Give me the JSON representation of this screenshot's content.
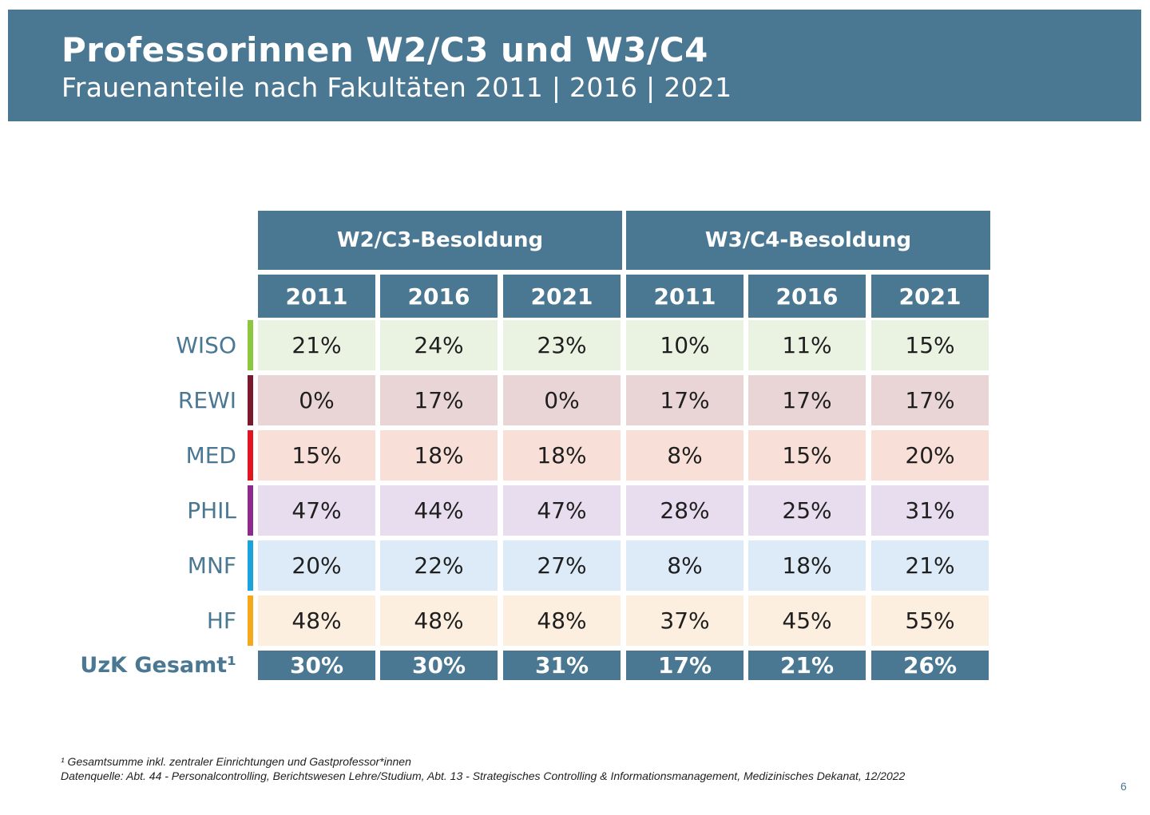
{
  "header": {
    "title": "Professorinnen W2/C3 und W3/C4",
    "subtitle": "Frauenanteile nach Fakultäten 2011 | 2016 | 2021"
  },
  "table": {
    "groups": [
      "W2/C3-Besoldung",
      "W3/C4-Besoldung"
    ],
    "years": [
      "2011",
      "2016",
      "2021",
      "2011",
      "2016",
      "2021"
    ],
    "rows": [
      {
        "label": "WISO",
        "accent": "#8dc63f",
        "bg": "#eaf3e2",
        "values": [
          "21%",
          "24%",
          "23%",
          "10%",
          "11%",
          "15%"
        ]
      },
      {
        "label": "REWI",
        "accent": "#7a1a2e",
        "bg": "#ead5d6",
        "values": [
          "0%",
          "17%",
          "0%",
          "17%",
          "17%",
          "17%"
        ]
      },
      {
        "label": "MED",
        "accent": "#e2141f",
        "bg": "#f8dfd7",
        "values": [
          "15%",
          "18%",
          "18%",
          "8%",
          "15%",
          "20%"
        ]
      },
      {
        "label": "PHIL",
        "accent": "#8e2a8e",
        "bg": "#e7ddee",
        "values": [
          "47%",
          "44%",
          "47%",
          "28%",
          "25%",
          "31%"
        ]
      },
      {
        "label": "MNF",
        "accent": "#1aa3dd",
        "bg": "#dcebf7",
        "values": [
          "20%",
          "22%",
          "27%",
          "8%",
          "18%",
          "21%"
        ]
      },
      {
        "label": "HF",
        "accent": "#f5a81c",
        "bg": "#fdefdf",
        "values": [
          "48%",
          "48%",
          "48%",
          "37%",
          "45%",
          "55%"
        ]
      }
    ],
    "total": {
      "label": "UzK Gesamt¹",
      "values": [
        "30%",
        "30%",
        "31%",
        "17%",
        "21%",
        "26%"
      ]
    }
  },
  "footnotes": {
    "note1": "¹ Gesamtsumme inkl. zentraler Einrichtungen und Gastprofessor*innen",
    "source": "Datenquelle: Abt. 44 - Personalcontrolling, Berichtswesen Lehre/Studium, Abt. 13 - Strategisches Controlling & Informationsmanagement, Medizinisches Dekanat, 12/2022"
  },
  "page_number": "6"
}
